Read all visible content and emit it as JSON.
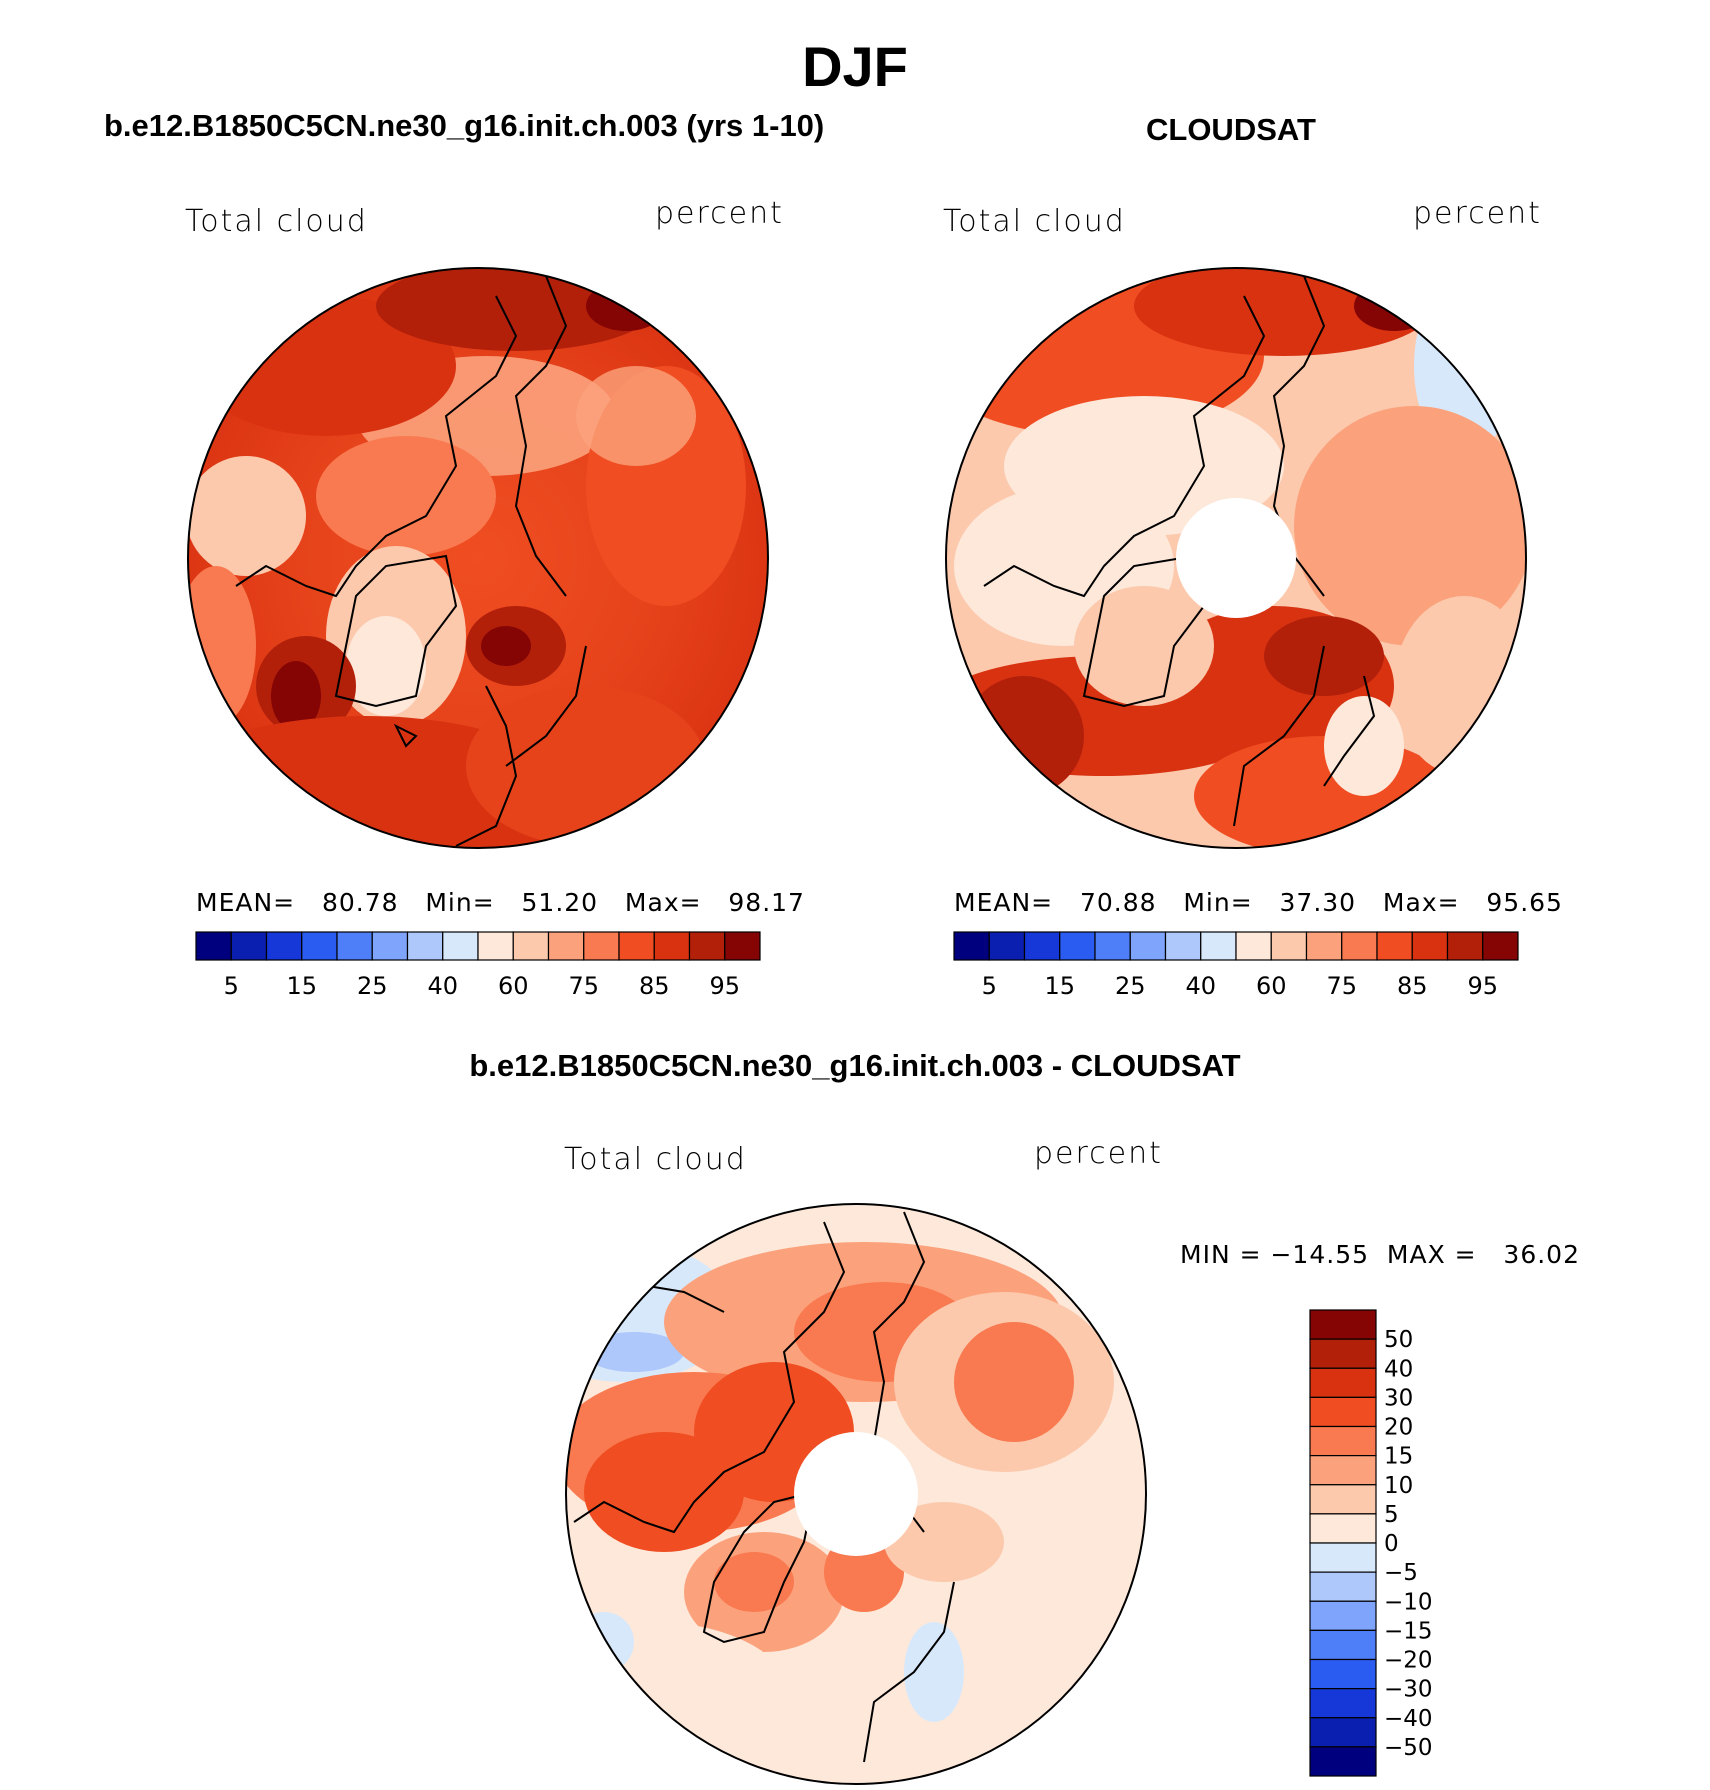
{
  "figure": {
    "season": "DJF",
    "variable": "Total cloud",
    "units": "percent"
  },
  "panels": {
    "model": {
      "title": "b.e12.B1850C5CN.ne30_g16.init.ch.003 (yrs 1-10)",
      "stats": "MEAN=   80.78   Min=   51.20   Max=   98.17"
    },
    "obs": {
      "title": "CLOUDSAT",
      "stats": "MEAN=   70.88   Min=   37.30   Max=   95.65"
    },
    "diff": {
      "title": "b.e12.B1850C5CN.ne30_g16.init.ch.003 - CLOUDSAT",
      "stats": "MIN = −14.55  MAX =   36.02"
    }
  },
  "chart_data": [
    {
      "type": "heatmap",
      "projection": "north polar stereographic",
      "title": "b.e12.B1850C5CN.ne30_g16.init.ch.003 (yrs 1-10)",
      "variable": "Total cloud",
      "units": "percent",
      "mean": 80.78,
      "min": 51.2,
      "max": 98.17,
      "colorbar": {
        "levels": [
          5,
          10,
          15,
          20,
          25,
          30,
          40,
          50,
          60,
          70,
          75,
          80,
          85,
          90,
          95
        ],
        "tick_labels": [
          "5",
          "15",
          "25",
          "40",
          "60",
          "75",
          "85",
          "95"
        ],
        "colors": [
          "#00007f",
          "#0a1fb0",
          "#1638d8",
          "#2a5cf2",
          "#4f7ff8",
          "#7fa4fb",
          "#aec8fb",
          "#d8e8fb",
          "#fde8da",
          "#fcc9ad",
          "#fba27c",
          "#f97a50",
          "#f04d22",
          "#d93211",
          "#b3200a",
          "#850505"
        ]
      }
    },
    {
      "type": "heatmap",
      "projection": "north polar stereographic",
      "title": "CLOUDSAT",
      "variable": "Total cloud",
      "units": "percent",
      "mean": 70.88,
      "min": 37.3,
      "max": 95.65,
      "colorbar": {
        "levels": [
          5,
          10,
          15,
          20,
          25,
          30,
          40,
          50,
          60,
          70,
          75,
          80,
          85,
          90,
          95
        ],
        "tick_labels": [
          "5",
          "15",
          "25",
          "40",
          "60",
          "75",
          "85",
          "95"
        ],
        "colors": [
          "#00007f",
          "#0a1fb0",
          "#1638d8",
          "#2a5cf2",
          "#4f7ff8",
          "#7fa4fb",
          "#aec8fb",
          "#d8e8fb",
          "#fde8da",
          "#fcc9ad",
          "#fba27c",
          "#f97a50",
          "#f04d22",
          "#d93211",
          "#b3200a",
          "#850505"
        ]
      }
    },
    {
      "type": "heatmap",
      "projection": "north polar stereographic",
      "title": "b.e12.B1850C5CN.ne30_g16.init.ch.003 - CLOUDSAT",
      "variable": "Total cloud",
      "units": "percent",
      "min": -14.55,
      "max": 36.02,
      "colorbar": {
        "levels": [
          50,
          40,
          30,
          20,
          15,
          10,
          5,
          0,
          -5,
          -10,
          -15,
          -20,
          -30,
          -40,
          -50
        ],
        "tick_labels": [
          "50",
          "40",
          "30",
          "20",
          "15",
          "10",
          "5",
          "0",
          "−5",
          "−10",
          "−15",
          "−20",
          "−30",
          "−40",
          "−50"
        ],
        "colors": [
          "#850505",
          "#b3200a",
          "#d93211",
          "#f04d22",
          "#f97a50",
          "#fba27c",
          "#fcc9ad",
          "#fde8da",
          "#d8e8fb",
          "#aec8fb",
          "#7fa4fb",
          "#4f7ff8",
          "#2a5cf2",
          "#1638d8",
          "#0a1fb0",
          "#00007f"
        ]
      }
    }
  ]
}
